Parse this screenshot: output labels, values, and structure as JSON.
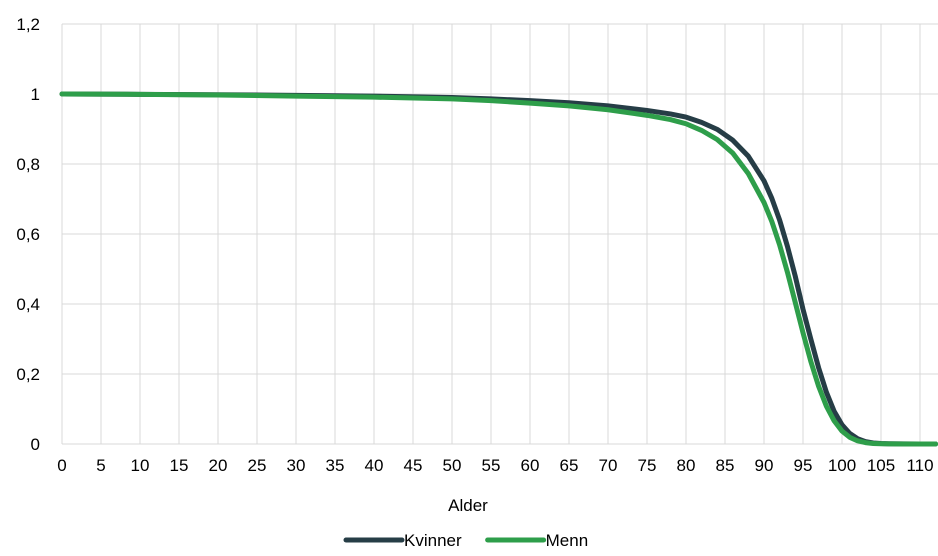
{
  "chart_data": {
    "type": "line",
    "xlabel": "Alder",
    "ylabel": "",
    "xlim": [
      0,
      112
    ],
    "ylim": [
      0,
      1.2
    ],
    "x_ticks": [
      "0",
      "5",
      "10",
      "15",
      "20",
      "25",
      "30",
      "35",
      "40",
      "45",
      "50",
      "55",
      "60",
      "65",
      "70",
      "75",
      "80",
      "85",
      "90",
      "95",
      "100",
      "105",
      "110"
    ],
    "y_ticks": [
      "0",
      "0,2",
      "0,4",
      "0,6",
      "0,8",
      "1",
      "1,2"
    ],
    "grid": true,
    "legend_position": "bottom",
    "series": [
      {
        "name": "Kvinner",
        "color": "#263d46",
        "x": [
          0,
          10,
          20,
          30,
          40,
          50,
          55,
          60,
          65,
          70,
          75,
          78,
          80,
          82,
          84,
          86,
          88,
          90,
          91,
          92,
          93,
          94,
          95,
          96,
          97,
          98,
          99,
          100,
          101,
          102,
          103,
          104,
          105,
          106,
          108,
          110,
          112
        ],
        "y": [
          1.0,
          0.999,
          0.998,
          0.996,
          0.994,
          0.99,
          0.986,
          0.981,
          0.975,
          0.966,
          0.953,
          0.943,
          0.934,
          0.919,
          0.899,
          0.868,
          0.822,
          0.752,
          0.702,
          0.64,
          0.565,
          0.48,
          0.385,
          0.3,
          0.218,
          0.148,
          0.093,
          0.055,
          0.03,
          0.015,
          0.007,
          0.003,
          0.0015,
          0.0006,
          0.0002,
          5e-05,
          0.0
        ]
      },
      {
        "name": "Menn",
        "color": "#2e9e4a",
        "x": [
          0,
          10,
          20,
          30,
          40,
          50,
          55,
          60,
          65,
          70,
          75,
          78,
          80,
          82,
          84,
          86,
          88,
          90,
          91,
          92,
          93,
          94,
          95,
          96,
          97,
          98,
          99,
          100,
          101,
          102,
          103,
          104,
          105,
          106,
          108,
          110,
          112
        ],
        "y": [
          1.0,
          0.999,
          0.997,
          0.994,
          0.991,
          0.986,
          0.981,
          0.974,
          0.966,
          0.955,
          0.939,
          0.927,
          0.915,
          0.896,
          0.87,
          0.831,
          0.772,
          0.69,
          0.636,
          0.569,
          0.491,
          0.405,
          0.318,
          0.236,
          0.165,
          0.108,
          0.066,
          0.037,
          0.019,
          0.009,
          0.004,
          0.0015,
          0.0006,
          0.0002,
          5e-05,
          0.0,
          0.0
        ]
      }
    ]
  }
}
